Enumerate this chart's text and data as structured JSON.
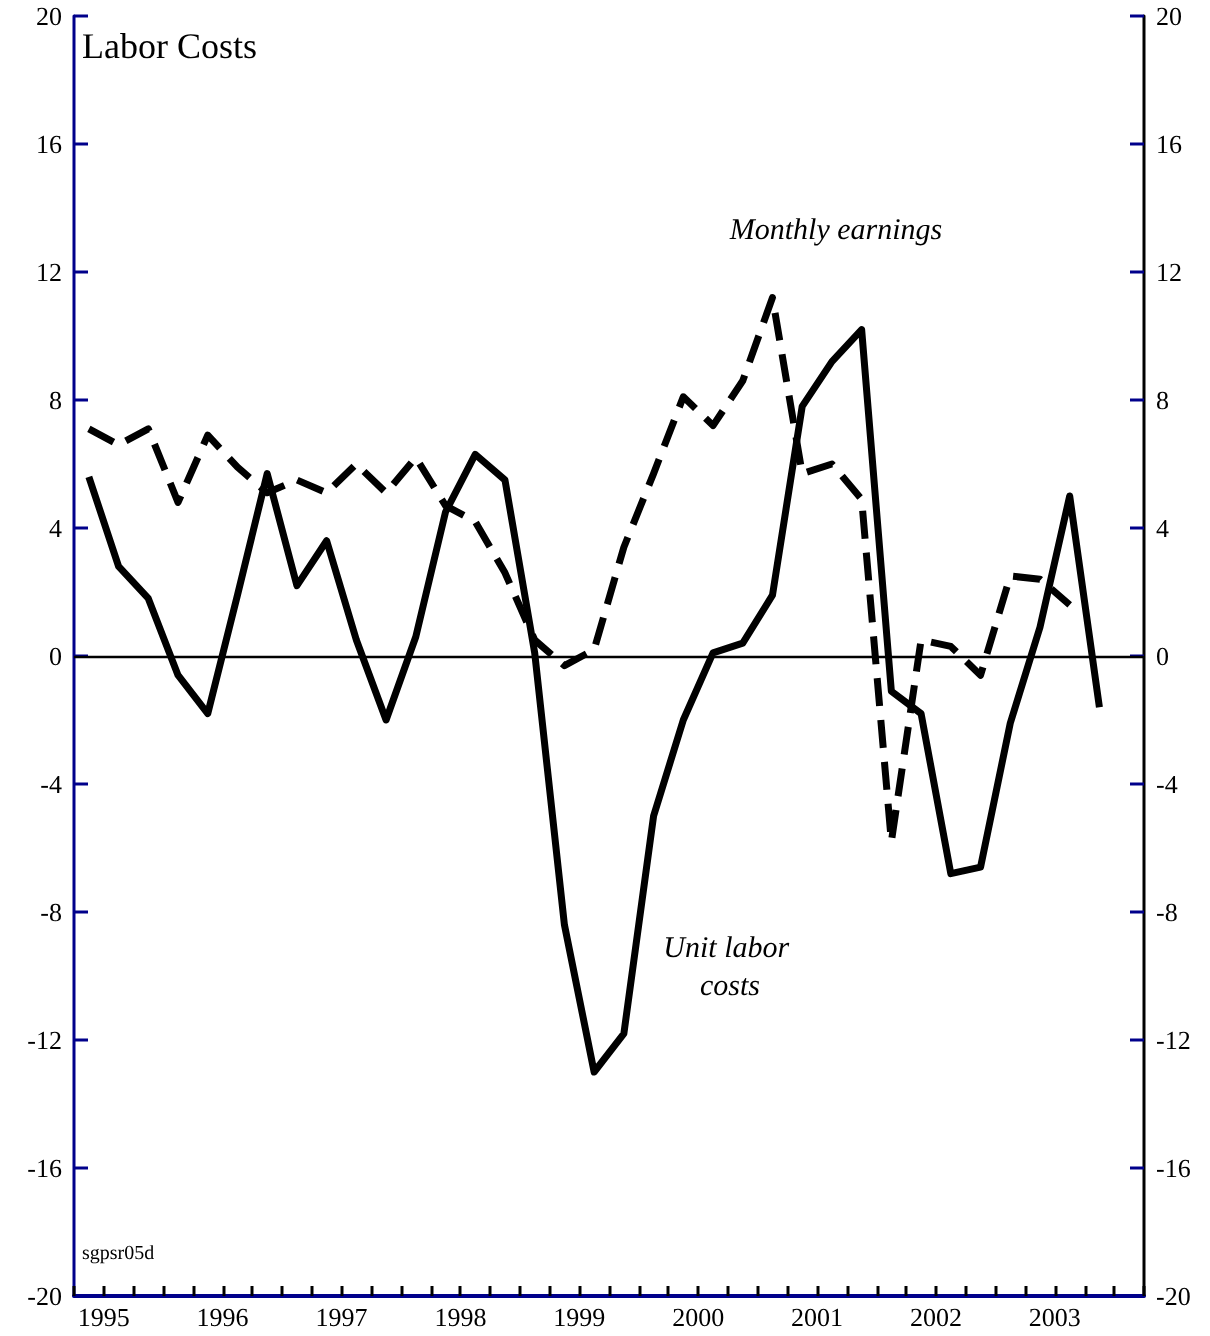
{
  "chart_data": {
    "type": "line",
    "title": "Labor Costs",
    "annotations": [
      "sgpsr05d"
    ],
    "x": [
      1995.125,
      1995.375,
      1995.625,
      1995.875,
      1996.125,
      1996.375,
      1996.625,
      1996.875,
      1997.125,
      1997.375,
      1997.625,
      1997.875,
      1998.125,
      1998.375,
      1998.625,
      1998.875,
      1999.125,
      1999.375,
      1999.625,
      1999.875,
      2000.125,
      2000.375,
      2000.625,
      2000.875,
      2001.125,
      2001.375,
      2001.625,
      2001.875,
      2002.125,
      2002.375,
      2002.625,
      2002.875,
      2003.125,
      2003.375,
      2003.625
    ],
    "series": [
      {
        "name": "Unit labor costs",
        "color": "#000000",
        "line_style": "solid",
        "values": [
          5.6,
          2.8,
          1.8,
          -0.6,
          -1.8,
          1.9,
          5.7,
          2.2,
          3.6,
          0.5,
          -2.0,
          0.6,
          4.5,
          6.3,
          5.5,
          0.1,
          -8.4,
          -13.0,
          -11.8,
          -5.0,
          -2.0,
          0.1,
          0.4,
          1.9,
          7.8,
          9.2,
          10.2,
          -1.1,
          -1.8,
          -6.8,
          -6.6,
          -2.1,
          0.9,
          5.0,
          -1.6
        ]
      },
      {
        "name": "Monthly earnings",
        "color": "#000000",
        "line_style": "dashed",
        "values": [
          7.1,
          6.6,
          7.1,
          4.8,
          6.9,
          5.9,
          5.1,
          5.5,
          5.1,
          6.0,
          5.1,
          6.2,
          4.7,
          4.2,
          2.6,
          0.5,
          -0.3,
          0.2,
          3.4,
          5.7,
          8.1,
          7.2,
          8.6,
          11.2,
          5.7,
          6.0,
          4.9,
          -5.8,
          0.5,
          0.3,
          -0.6,
          2.5,
          2.4,
          1.6,
          null
        ]
      }
    ],
    "xlim": [
      1995,
      2004
    ],
    "xticks": [
      {
        "value": 1995,
        "label": null
      },
      {
        "value": 1995.25,
        "label": "1995"
      },
      {
        "value": 1995.5,
        "label": null
      },
      {
        "value": 1995.75,
        "label": null
      },
      {
        "value": 1996,
        "label": null
      },
      {
        "value": 1996.25,
        "label": "1996"
      },
      {
        "value": 1996.5,
        "label": null
      },
      {
        "value": 1996.75,
        "label": null
      },
      {
        "value": 1997,
        "label": null
      },
      {
        "value": 1997.25,
        "label": "1997"
      },
      {
        "value": 1997.5,
        "label": null
      },
      {
        "value": 1997.75,
        "label": null
      },
      {
        "value": 1998,
        "label": null
      },
      {
        "value": 1998.25,
        "label": "1998"
      },
      {
        "value": 1998.5,
        "label": null
      },
      {
        "value": 1998.75,
        "label": null
      },
      {
        "value": 1999,
        "label": null
      },
      {
        "value": 1999.25,
        "label": "1999"
      },
      {
        "value": 1999.5,
        "label": null
      },
      {
        "value": 1999.75,
        "label": null
      },
      {
        "value": 2000,
        "label": null
      },
      {
        "value": 2000.25,
        "label": "2000"
      },
      {
        "value": 2000.5,
        "label": null
      },
      {
        "value": 2000.75,
        "label": null
      },
      {
        "value": 2001,
        "label": null
      },
      {
        "value": 2001.25,
        "label": "2001"
      },
      {
        "value": 2001.5,
        "label": null
      },
      {
        "value": 2001.75,
        "label": null
      },
      {
        "value": 2002,
        "label": null
      },
      {
        "value": 2002.25,
        "label": "2002"
      },
      {
        "value": 2002.5,
        "label": null
      },
      {
        "value": 2002.75,
        "label": null
      },
      {
        "value": 2003,
        "label": null
      },
      {
        "value": 2003.25,
        "label": "2003"
      },
      {
        "value": 2003.5,
        "label": null
      },
      {
        "value": 2003.75,
        "label": null
      },
      {
        "value": 2004,
        "label": null
      }
    ],
    "ylim": [
      -20,
      20
    ],
    "yticks": [
      -20,
      -16,
      -12,
      -8,
      -4,
      0,
      4,
      8,
      12,
      16,
      20
    ],
    "y2lim": [
      -20,
      20
    ],
    "y2ticks": [
      -20,
      -16,
      -12,
      -8,
      -4,
      0,
      4,
      8,
      12,
      16,
      20
    ],
    "ref_lines": [
      {
        "axis": "y",
        "value": 0,
        "color": "#000000"
      }
    ],
    "grid": false,
    "legend": false,
    "marker": "none"
  }
}
